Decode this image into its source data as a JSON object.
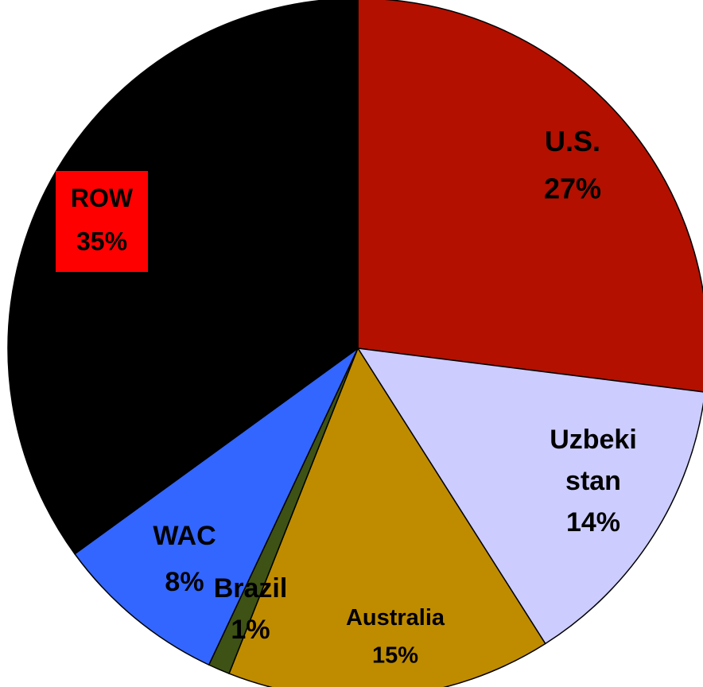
{
  "chart_data": {
    "type": "pie",
    "categories": [
      "U.S.",
      "Uzbeki stan",
      "Australia",
      "Brazil",
      "WAC",
      "ROW"
    ],
    "values": [
      27,
      14,
      15,
      1,
      8,
      35
    ],
    "value_labels": [
      "27%",
      "14%",
      "15%",
      "1%",
      "8%",
      "35%"
    ],
    "colors": [
      "#b31000",
      "#ccccff",
      "#bf8c00",
      "#3d5214",
      "#3366ff",
      "#000000"
    ]
  }
}
